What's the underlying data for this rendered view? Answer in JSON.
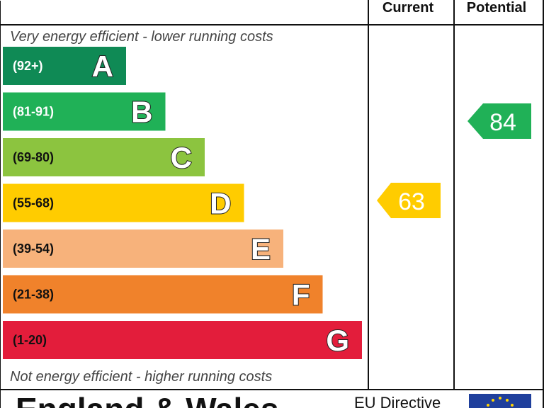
{
  "chart_data": {
    "type": "bar",
    "headers": {
      "current": "Current",
      "potential": "Potential"
    },
    "top_note": "Very energy efficient - lower running costs",
    "bottom_note": "Not energy efficient - higher running costs",
    "bands": [
      {
        "letter": "A",
        "range": "(92+)",
        "color": "#0f8a55",
        "text_color": "#ffffff"
      },
      {
        "letter": "B",
        "range": "(81-91)",
        "color": "#20b157",
        "text_color": "#ffffff"
      },
      {
        "letter": "C",
        "range": "(69-80)",
        "color": "#8cc43f",
        "text_color": "#111111"
      },
      {
        "letter": "D",
        "range": "(55-68)",
        "color": "#ffcc00",
        "text_color": "#111111"
      },
      {
        "letter": "E",
        "range": "(39-54)",
        "color": "#f7b27b",
        "text_color": "#111111"
      },
      {
        "letter": "F",
        "range": "(21-38)",
        "color": "#f0822b",
        "text_color": "#111111"
      },
      {
        "letter": "G",
        "range": "(1-20)",
        "color": "#e31d3b",
        "text_color": "#111111"
      }
    ],
    "current": {
      "value": 63,
      "band": "D",
      "color": "#ffcc00"
    },
    "potential": {
      "value": 84,
      "band": "B",
      "color": "#20b157"
    },
    "footer": {
      "country": "England & Wales",
      "directive": "EU Directive"
    }
  }
}
